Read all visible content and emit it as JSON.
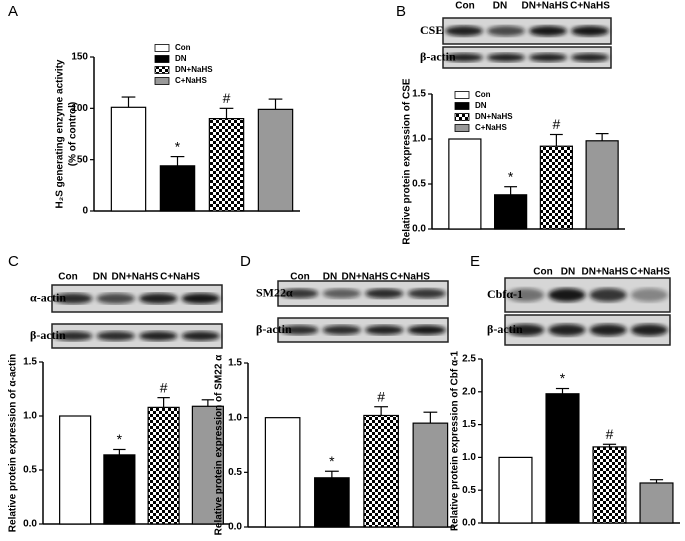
{
  "chart_data": [
    {
      "type": "bar",
      "panel": "A",
      "y_label": [
        "H₂S generating enzyme activity",
        "(% of control)"
      ],
      "categories": [
        "Con",
        "DN",
        "DN+NaHS",
        "C+NaHS"
      ],
      "fills": [
        "#ffffff",
        "#000000",
        "checker",
        "#999999"
      ],
      "values": [
        101,
        44,
        90,
        99
      ],
      "errors": [
        10,
        9,
        10,
        10
      ],
      "ylim": [
        0,
        150
      ],
      "yticks": [
        0,
        50,
        100,
        150
      ],
      "legend": "top-left",
      "annotations": [
        {
          "text": "*",
          "at": "DN"
        },
        {
          "text": "#",
          "at": "DN+NaHS"
        }
      ]
    },
    {
      "type": "bar",
      "panel": "B",
      "y_label": [
        "Relative protein expression of CSE"
      ],
      "blot_labels": [
        "CSE",
        "β-actin"
      ],
      "categories": [
        "Con",
        "DN",
        "DN+NaHS",
        "C+NaHS"
      ],
      "fills": [
        "#ffffff",
        "#000000",
        "checker",
        "#999999"
      ],
      "values": [
        1.0,
        0.38,
        0.92,
        0.98
      ],
      "errors": [
        null,
        0.09,
        0.13,
        0.08
      ],
      "ylim": [
        0,
        1.5
      ],
      "yticks": [
        {
          "value": 0,
          "label": "0.0"
        },
        {
          "value": 0.5,
          "label": "0.5"
        },
        {
          "value": 1,
          "label": "1.0"
        },
        {
          "value": 1.5,
          "label": "1.5"
        }
      ],
      "legend": "top-left",
      "annotations": [
        {
          "text": "*",
          "at": "DN"
        },
        {
          "text": "#",
          "at": "DN+NaHS"
        }
      ]
    },
    {
      "type": "bar",
      "panel": "C",
      "y_label": [
        "Relative protein expression of α-actin"
      ],
      "blot_labels": [
        "α-actin",
        "β-actin"
      ],
      "categories": [
        "Con",
        "DN",
        "DN+NaHS",
        "C+NaHS"
      ],
      "fills": [
        "#ffffff",
        "#000000",
        "checker",
        "#999999"
      ],
      "values": [
        1.0,
        0.64,
        1.08,
        1.09
      ],
      "errors": [
        null,
        0.05,
        0.09,
        0.06
      ],
      "ylim": [
        0,
        1.5
      ],
      "yticks": [
        {
          "value": 0,
          "label": "0.0"
        },
        {
          "value": 0.5,
          "label": "0.5"
        },
        {
          "value": 1,
          "label": "1.0"
        },
        {
          "value": 1.5,
          "label": "1.5"
        }
      ],
      "annotations": [
        {
          "text": "*",
          "at": "DN"
        },
        {
          "text": "#",
          "at": "DN+NaHS"
        }
      ]
    },
    {
      "type": "bar",
      "panel": "D",
      "y_label": [
        "Relative protein expression of SM22 α"
      ],
      "blot_labels": [
        "SM22α",
        "β-actin"
      ],
      "categories": [
        "Con",
        "DN",
        "DN+NaHS",
        "C+NaHS"
      ],
      "fills": [
        "#ffffff",
        "#000000",
        "checker",
        "#999999"
      ],
      "values": [
        1.0,
        0.45,
        1.02,
        0.95
      ],
      "errors": [
        null,
        0.06,
        0.08,
        0.1
      ],
      "ylim": [
        0,
        1.5
      ],
      "yticks": [
        {
          "value": 0,
          "label": "0.0"
        },
        {
          "value": 0.5,
          "label": "0.5"
        },
        {
          "value": 1,
          "label": "1.0"
        },
        {
          "value": 1.5,
          "label": "1.5"
        }
      ],
      "annotations": [
        {
          "text": "*",
          "at": "DN"
        },
        {
          "text": "#",
          "at": "DN+NaHS"
        }
      ]
    },
    {
      "type": "bar",
      "panel": "E",
      "y_label": [
        "Relative protein expression of Cbf α-1"
      ],
      "blot_labels": [
        "Cbfα-1",
        "β-actin"
      ],
      "categories": [
        "Con",
        "DN",
        "DN+NaHS",
        "C+NaHS"
      ],
      "fills": [
        "#ffffff",
        "#000000",
        "checker",
        "#999999"
      ],
      "values": [
        1.0,
        1.97,
        1.16,
        0.61
      ],
      "errors": [
        null,
        0.08,
        0.04,
        0.05
      ],
      "ylim": [
        0,
        2.5
      ],
      "yticks": [
        {
          "value": 0,
          "label": "0.0"
        },
        {
          "value": 0.5,
          "label": "0.5"
        },
        {
          "value": 1,
          "label": "1.0"
        },
        {
          "value": 1.5,
          "label": "1.5"
        },
        {
          "value": 2,
          "label": "2.0"
        },
        {
          "value": 2.5,
          "label": "2.5"
        }
      ],
      "annotations": [
        {
          "text": "*",
          "at": "DN"
        },
        {
          "text": "#",
          "at": "DN+NaHS"
        }
      ]
    }
  ]
}
